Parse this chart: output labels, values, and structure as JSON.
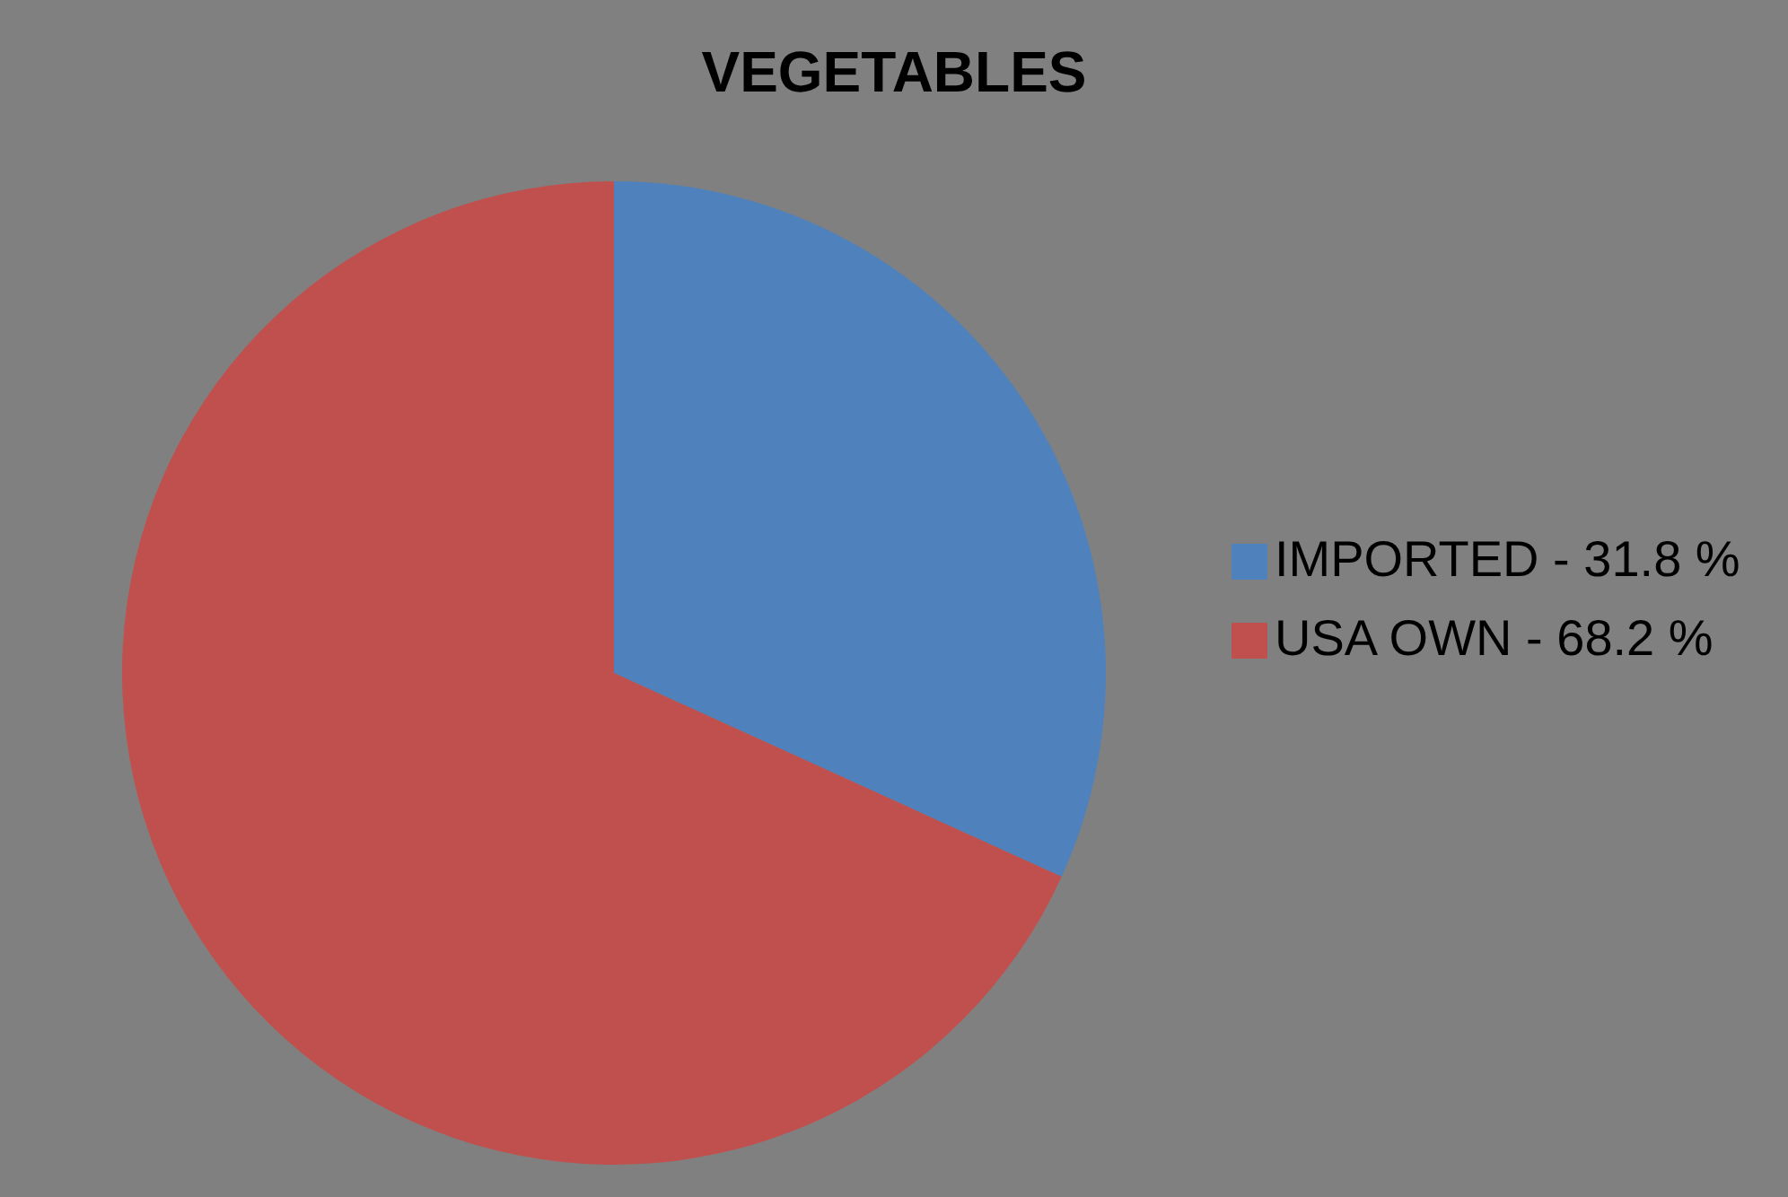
{
  "chart_data": {
    "type": "pie",
    "title": "VEGETABLES",
    "categories": [
      "IMPORTED - 31.8 %",
      "USA OWN -  68.2 %"
    ],
    "values": [
      31.8,
      68.2
    ],
    "colors": [
      "#4f81bd",
      "#c0504d"
    ],
    "legend": "right"
  }
}
